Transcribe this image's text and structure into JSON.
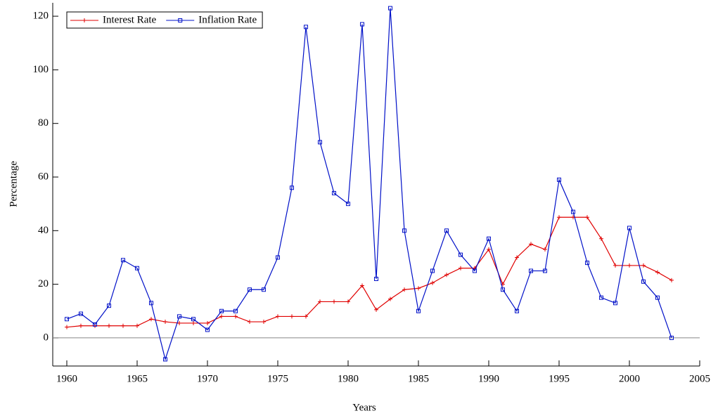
{
  "chart_data": {
    "type": "line",
    "x_label": "Years",
    "y_label": "Percentage",
    "x": [
      1960,
      1961,
      1962,
      1963,
      1964,
      1965,
      1966,
      1967,
      1968,
      1969,
      1970,
      1971,
      1972,
      1973,
      1974,
      1975,
      1976,
      1977,
      1978,
      1979,
      1980,
      1981,
      1982,
      1983,
      1984,
      1985,
      1986,
      1987,
      1988,
      1989,
      1990,
      1991,
      1992,
      1993,
      1994,
      1995,
      1996,
      1997,
      1998,
      1999,
      2000,
      2001,
      2002,
      2003
    ],
    "series": [
      {
        "name": "Interest Rate",
        "color": "#e00000",
        "marker": "plus",
        "values": [
          4,
          4.5,
          4.5,
          4.5,
          4.5,
          4.5,
          7,
          6,
          5.5,
          5.5,
          5.5,
          8,
          8,
          6,
          6,
          8,
          8,
          8,
          13.5,
          13.5,
          13.5,
          19.5,
          10.5,
          14.5,
          18,
          18.5,
          20.5,
          23.5,
          26,
          26,
          33,
          20,
          30,
          35,
          33,
          45,
          45,
          45,
          37,
          27,
          27,
          27,
          24.5,
          21.5
        ]
      },
      {
        "name": "Inflation Rate",
        "color": "#0010c8",
        "marker": "square",
        "values": [
          7,
          9,
          5,
          12,
          29,
          26,
          13,
          -8,
          8,
          7,
          3,
          10,
          10,
          18,
          18,
          30,
          56,
          116,
          73,
          54,
          50,
          117,
          22,
          123,
          40,
          10,
          25,
          40,
          31,
          25,
          37,
          18,
          10,
          25,
          25,
          59,
          47,
          28,
          15,
          13,
          41,
          21,
          15,
          0
        ]
      }
    ],
    "xlim": [
      1959,
      2005
    ],
    "ylim": [
      -10.5,
      125
    ],
    "xticks": [
      1960,
      1965,
      1970,
      1975,
      1980,
      1985,
      1990,
      1995,
      2000,
      2005
    ],
    "yticks": [
      0,
      20,
      40,
      60,
      80,
      100,
      120
    ],
    "zero_line": true,
    "legend": "upper-left"
  }
}
